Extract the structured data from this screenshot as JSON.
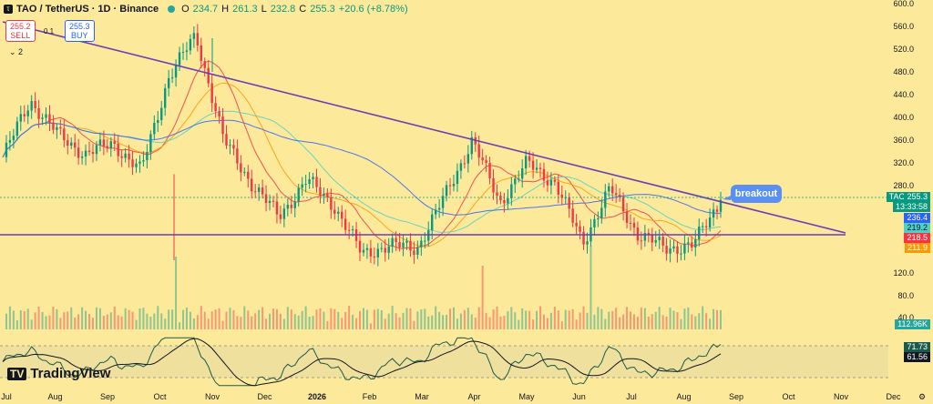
{
  "header": {
    "symbol": "TAO / TetherUS · 1D · Binance",
    "o_label": "O",
    "o": "234.7",
    "h_label": "H",
    "h": "261.3",
    "l_label": "L",
    "l": "232.8",
    "c_label": "C",
    "c": "255.3",
    "change": "+20.6 (+8.78%)"
  },
  "trade": {
    "sell_price": "255.2",
    "sell_label": "SELL",
    "buy_price": "255.3",
    "buy_label": "BUY",
    "spread": "0.1"
  },
  "legend_toggle": "⌄ 2",
  "annotation": "breakout",
  "watermark": "TradingView",
  "price_labels": {
    "ticker": "TAOUSDT",
    "price": "255.3",
    "countdown": "13:33:58",
    "ma1": "236.4",
    "ma2": "219.2",
    "ma3": "218.5",
    "ma4": "211.9",
    "volume": "112.96K",
    "rsi": "71.73",
    "rsi_ma": "61.56"
  },
  "colors": {
    "background": "#fde99a",
    "up": "#089981",
    "down": "#f23645",
    "trendline": "#6a3fb5",
    "ma_blue": "#2962ff",
    "ma_cyan": "#4dd0c8",
    "ma_red": "#f23645",
    "ma_orange": "#ff9800"
  },
  "chart_data": {
    "type": "candlestick",
    "y_ticks": [
      600,
      560,
      520,
      480,
      440,
      400,
      360,
      320,
      280,
      120,
      80,
      40
    ],
    "x_ticks": [
      "Jul",
      "Aug",
      "Sep",
      "Oct",
      "Nov",
      "Dec",
      "2026",
      "Feb",
      "Mar",
      "Apr",
      "May",
      "Jun",
      "Jul",
      "Aug",
      "Sep",
      "Oct",
      "Nov",
      "Dec"
    ],
    "price_path": [
      {
        "t": "Jul",
        "close": 330
      },
      {
        "t": "Aug",
        "close": 430
      },
      {
        "t": "mid-Aug",
        "close": 370
      },
      {
        "t": "Sep",
        "close": 335
      },
      {
        "t": "mid-Sep",
        "close": 355
      },
      {
        "t": "Oct",
        "close": 305
      },
      {
        "t": "late-Oct",
        "close": 470
      },
      {
        "t": "Nov",
        "close": 545
      },
      {
        "t": "mid-Nov",
        "close": 360
      },
      {
        "t": "Dec",
        "close": 285
      },
      {
        "t": "late-Dec",
        "close": 225
      },
      {
        "t": "2026",
        "close": 290
      },
      {
        "t": "mid-Jan",
        "close": 245
      },
      {
        "t": "Feb",
        "close": 160
      },
      {
        "t": "mid-Feb",
        "close": 175
      },
      {
        "t": "Mar",
        "close": 170
      },
      {
        "t": "late-Mar",
        "close": 260
      },
      {
        "t": "Apr",
        "close": 360
      },
      {
        "t": "mid-Apr",
        "close": 250
      },
      {
        "t": "May",
        "close": 320
      },
      {
        "t": "mid-May",
        "close": 285
      },
      {
        "t": "Jun",
        "close": 180
      },
      {
        "t": "mid-Jun",
        "close": 275
      },
      {
        "t": "Jul",
        "close": 195
      },
      {
        "t": "mid-Jul",
        "close": 170
      },
      {
        "t": "Aug",
        "close": 175
      },
      {
        "t": "late-Aug",
        "close": 255
      }
    ],
    "trendlines": [
      {
        "name": "descending resistance",
        "from": {
          "t": "Jul",
          "price": 555
        },
        "to": {
          "t": "Nov 2026",
          "price": 180
        }
      },
      {
        "name": "horizontal support",
        "from": {
          "t": "Jul",
          "price": 180
        },
        "to": {
          "t": "Nov 2026",
          "price": 180
        }
      }
    ],
    "grid": false
  }
}
